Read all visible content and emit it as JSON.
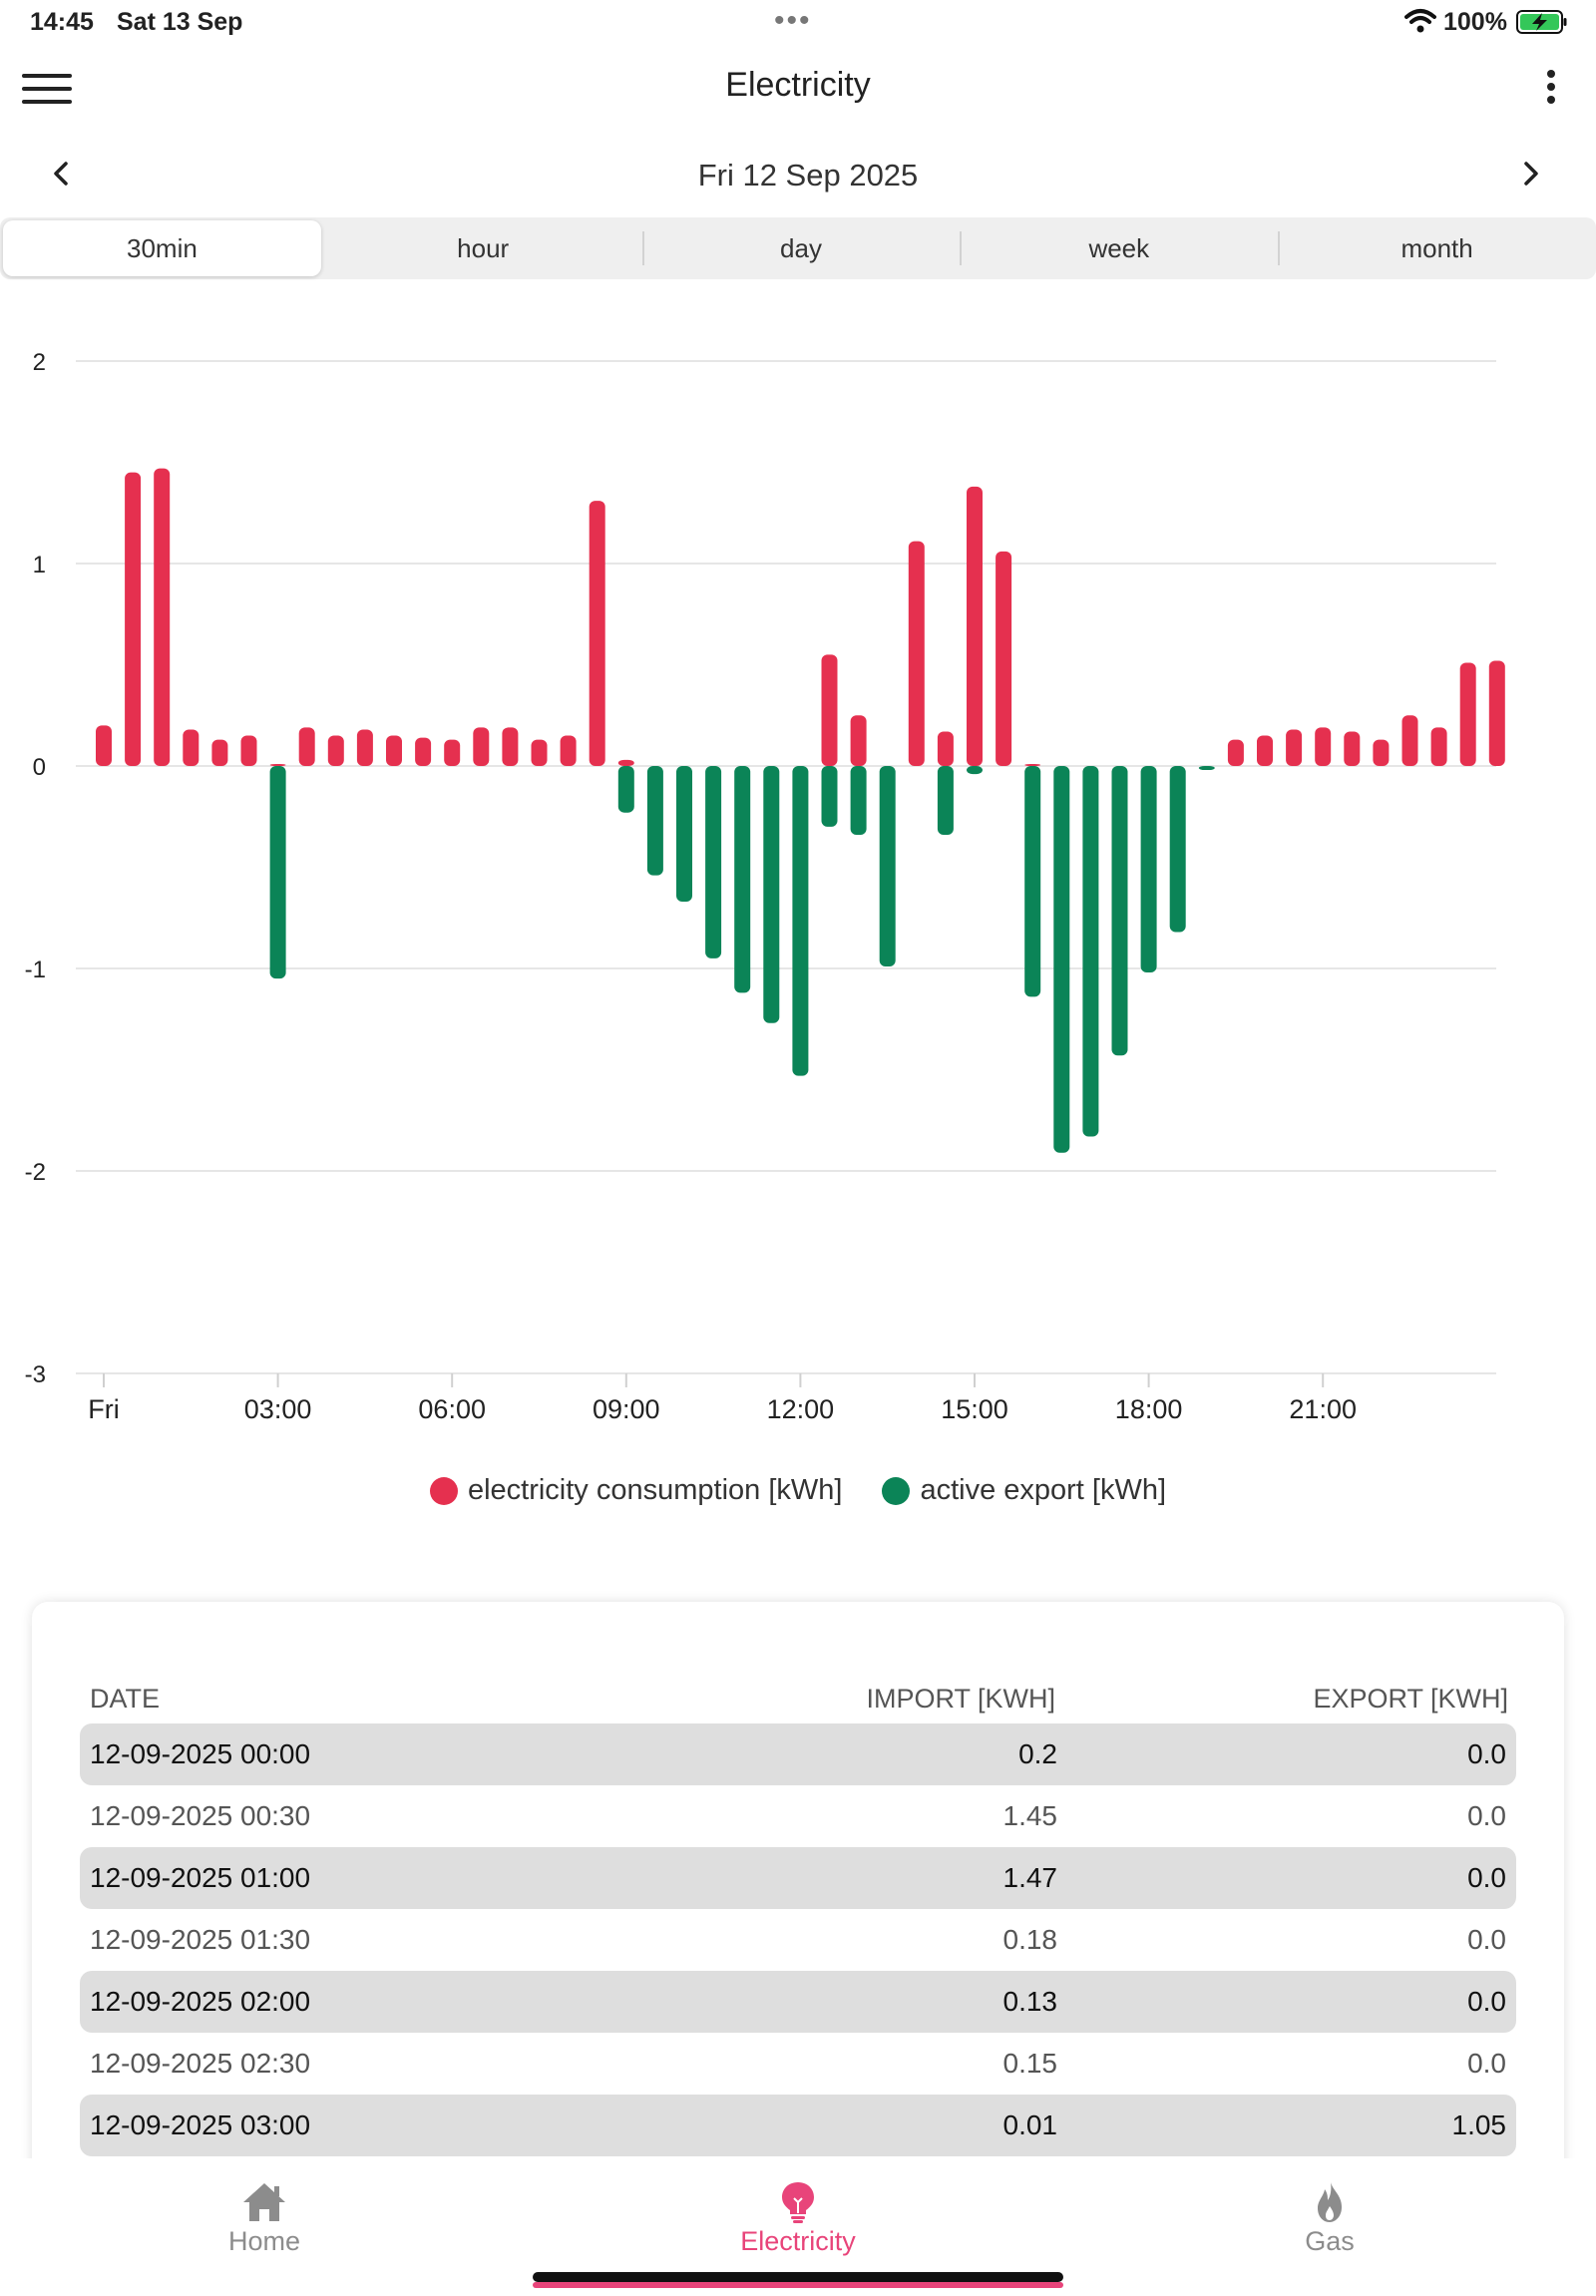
{
  "status_bar": {
    "time": "14:45",
    "date": "Sat 13 Sep",
    "battery": "100%",
    "icons": [
      "wifi-icon",
      "battery-charging-icon"
    ]
  },
  "header": {
    "title": "Electricity",
    "icons": [
      "hamburger-menu-icon",
      "more-vertical-icon"
    ]
  },
  "date_nav": {
    "current": "Fri 12 Sep 2025",
    "icons": [
      "chevron-left-icon",
      "chevron-right-icon"
    ]
  },
  "period_tabs": [
    {
      "label": "30min",
      "active": true
    },
    {
      "label": "hour",
      "active": false
    },
    {
      "label": "day",
      "active": false
    },
    {
      "label": "week",
      "active": false
    },
    {
      "label": "month",
      "active": false
    }
  ],
  "colors": {
    "consumption": "#e5304f",
    "export": "#0b8457",
    "accent": "#e8447a",
    "grid": "#e6e6e6"
  },
  "chart_data": {
    "type": "bar",
    "title": "",
    "xlabel": "",
    "ylabel": "",
    "ylim": [
      -3,
      2
    ],
    "yticks": [
      "2",
      "1",
      "0",
      "-1",
      "-2",
      "-3"
    ],
    "xticks": [
      {
        "label": "Fri",
        "slot": 0
      },
      {
        "label": "03:00",
        "slot": 6
      },
      {
        "label": "06:00",
        "slot": 12
      },
      {
        "label": "09:00",
        "slot": 18
      },
      {
        "label": "12:00",
        "slot": 24
      },
      {
        "label": "15:00",
        "slot": 30
      },
      {
        "label": "18:00",
        "slot": 36
      },
      {
        "label": "21:00",
        "slot": 42
      }
    ],
    "grid": true,
    "legend_position": "bottom",
    "interval": "30min",
    "series": [
      {
        "name": "electricity consumption [kWh]",
        "values": [
          0.2,
          1.45,
          1.47,
          0.18,
          0.13,
          0.15,
          0.01,
          0.19,
          0.15,
          0.18,
          0.15,
          0.14,
          0.13,
          0.19,
          0.19,
          0.13,
          0.15,
          1.31,
          0.03,
          0,
          0,
          0,
          0,
          0,
          0,
          0.55,
          0.25,
          0,
          1.11,
          0.17,
          1.38,
          1.06,
          0.01,
          0,
          0,
          0,
          0,
          0,
          0,
          0.13,
          0.15,
          0.18,
          0.19,
          0.17,
          0.13,
          0.25,
          0.19,
          0.51,
          0.52
        ]
      },
      {
        "name": "active export [kWh]",
        "values": [
          0,
          0,
          0,
          0,
          0,
          0,
          1.05,
          0,
          0,
          0,
          0,
          0,
          0,
          0,
          0,
          0,
          0,
          0,
          0.23,
          0.54,
          0.67,
          0.95,
          1.12,
          1.27,
          1.53,
          0.3,
          0.34,
          0.99,
          0,
          0.34,
          0.04,
          0,
          1.14,
          1.91,
          1.83,
          1.43,
          1.02,
          0.82,
          0.02,
          0,
          0,
          0,
          0,
          0,
          0,
          0,
          0,
          0,
          0
        ]
      }
    ]
  },
  "table": {
    "headers": {
      "date": "DATE",
      "import": "IMPORT [KWH]",
      "export": "EXPORT [KWH]"
    },
    "rows": [
      {
        "date": "12-09-2025 00:00",
        "import": "0.2",
        "export": "0.0"
      },
      {
        "date": "12-09-2025 00:30",
        "import": "1.45",
        "export": "0.0"
      },
      {
        "date": "12-09-2025 01:00",
        "import": "1.47",
        "export": "0.0"
      },
      {
        "date": "12-09-2025 01:30",
        "import": "0.18",
        "export": "0.0"
      },
      {
        "date": "12-09-2025 02:00",
        "import": "0.13",
        "export": "0.0"
      },
      {
        "date": "12-09-2025 02:30",
        "import": "0.15",
        "export": "0.0"
      },
      {
        "date": "12-09-2025 03:00",
        "import": "0.01",
        "export": "1.05"
      }
    ]
  },
  "tab_bar": {
    "items": [
      {
        "label": "Home",
        "icon": "home-icon",
        "active": false
      },
      {
        "label": "Electricity",
        "icon": "lightbulb-icon",
        "active": true
      },
      {
        "label": "Gas",
        "icon": "flame-icon",
        "active": false
      }
    ]
  }
}
